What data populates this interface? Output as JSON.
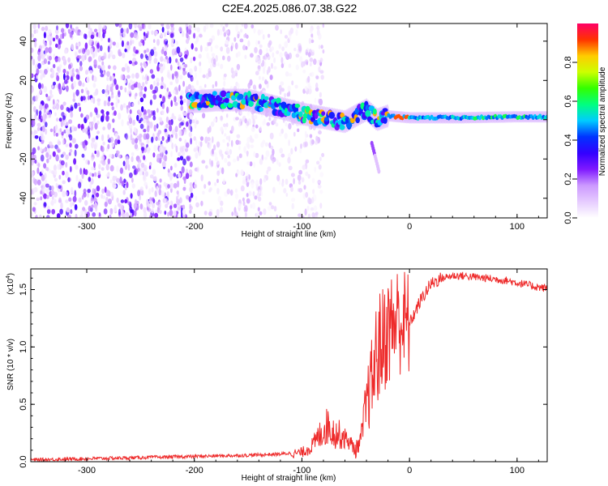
{
  "title": "C2E4.2025.086.07.38.G22",
  "chart_data": [
    {
      "type": "heatmap",
      "xlabel": "Height of straight line (km)",
      "ylabel": "Frequency (Hz)",
      "xlim": [
        -352,
        128
      ],
      "ylim": [
        -50,
        49
      ],
      "xticks": [
        -300,
        -200,
        -100,
        0,
        100
      ],
      "yticks": [
        -40,
        -20,
        0,
        20,
        40
      ],
      "colorbar": {
        "label": "Normalized spectral amplitude",
        "range": [
          0,
          1
        ],
        "ticks": [
          0.0,
          0.2,
          0.4,
          0.6,
          0.8
        ],
        "colormap": [
          "#ffffff",
          "#e6ccff",
          "#cc99ff",
          "#7f19ff",
          "#3300ff",
          "#0033ff",
          "#00ccff",
          "#00ff80",
          "#33ff00",
          "#ccff00",
          "#ffcc00",
          "#ff3300",
          "#ff0066"
        ]
      },
      "features": [
        {
          "name": "noise",
          "x_range": [
            -352,
            -200
          ],
          "y_range": [
            -50,
            49
          ],
          "amplitude": 0.15
        },
        {
          "name": "noise",
          "x_range": [
            -200,
            -80
          ],
          "y_range": [
            -50,
            49
          ],
          "amplitude": 0.07
        },
        {
          "name": "signal",
          "x": [
            -205,
            -180,
            -150,
            -120,
            -100,
            -80,
            -60,
            -40,
            -30,
            -20,
            0,
            50,
            100,
            128
          ],
          "y": [
            9,
            10,
            10,
            6,
            3,
            1,
            -1,
            5,
            0,
            2,
            1,
            1,
            1.5,
            1.5
          ],
          "amplitude": 0.45
        }
      ]
    },
    {
      "type": "line",
      "xlabel": "Height of straight line (km)",
      "ylabel": "SNR (10 * v/v)",
      "yscale_label": "(x10",
      "yscale_exp": "4",
      "scale": 10000,
      "xlim": [
        -352,
        128
      ],
      "ylim": [
        0,
        1.68
      ],
      "xticks": [
        -300,
        -200,
        -100,
        0,
        100
      ],
      "yticks": [
        0.0,
        0.5,
        1.0,
        1.5
      ],
      "color": "#ee2a2a",
      "x": [
        -352,
        -300,
        -250,
        -200,
        -150,
        -120,
        -100,
        -90,
        -80,
        -75,
        -70,
        -60,
        -50,
        -45,
        -40,
        -35,
        -30,
        -25,
        -20,
        -15,
        -10,
        -5,
        0,
        10,
        20,
        30,
        40,
        50,
        60,
        70,
        80,
        90,
        100,
        110,
        120,
        128
      ],
      "y": [
        0.01,
        0.02,
        0.03,
        0.04,
        0.05,
        0.06,
        0.08,
        0.14,
        0.28,
        0.32,
        0.25,
        0.22,
        0.1,
        0.2,
        0.5,
        0.7,
        0.95,
        1.05,
        1.15,
        1.2,
        1.25,
        1.2,
        1.2,
        1.4,
        1.55,
        1.6,
        1.62,
        1.62,
        1.61,
        1.6,
        1.59,
        1.58,
        1.56,
        1.54,
        1.52,
        1.51
      ]
    }
  ]
}
